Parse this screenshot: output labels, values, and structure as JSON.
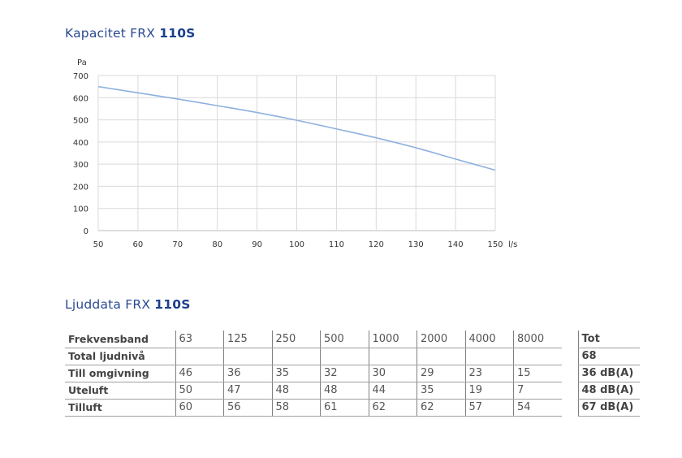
{
  "capacity_title": {
    "prefix": "Kapacitet FRX ",
    "model": "110S"
  },
  "sound_title": {
    "prefix": "Ljuddata FRX ",
    "model": "110S"
  },
  "chart_data": {
    "type": "line",
    "xlabel": "l/s",
    "ylabel": "Pa",
    "xlim": [
      50,
      150
    ],
    "ylim": [
      0,
      700
    ],
    "x_ticks": [
      50,
      60,
      70,
      80,
      90,
      100,
      110,
      120,
      130,
      140,
      150
    ],
    "y_ticks": [
      0,
      100,
      200,
      300,
      400,
      500,
      600,
      700
    ],
    "grid": true,
    "line_color": "#8fb1de",
    "series": [
      {
        "x": [
          50,
          60,
          70,
          80,
          90,
          100,
          110,
          120,
          130,
          140,
          150
        ],
        "values": [
          650,
          622,
          594,
          564,
          533,
          498,
          459,
          419,
          374,
          323,
          273
        ]
      }
    ]
  },
  "sound_table": {
    "header_label": "Frekvensband",
    "frequencies": [
      "63",
      "125",
      "250",
      "500",
      "1000",
      "2000",
      "4000",
      "8000"
    ],
    "total_header": "Tot",
    "rows": [
      {
        "label": "Total ljudnivå",
        "values": [
          "",
          "",
          "",
          "",
          "",
          "",
          "",
          ""
        ],
        "total": "68"
      },
      {
        "label": "Till omgivning",
        "values": [
          "46",
          "36",
          "35",
          "32",
          "30",
          "29",
          "23",
          "15"
        ],
        "total": "36 dB(A)"
      },
      {
        "label": "Uteluft",
        "values": [
          "50",
          "47",
          "48",
          "48",
          "44",
          "35",
          "19",
          "7"
        ],
        "total": "48 dB(A)"
      },
      {
        "label": "Tilluft",
        "values": [
          "60",
          "56",
          "58",
          "61",
          "62",
          "62",
          "57",
          "54"
        ],
        "total": "67 dB(A)"
      }
    ]
  }
}
